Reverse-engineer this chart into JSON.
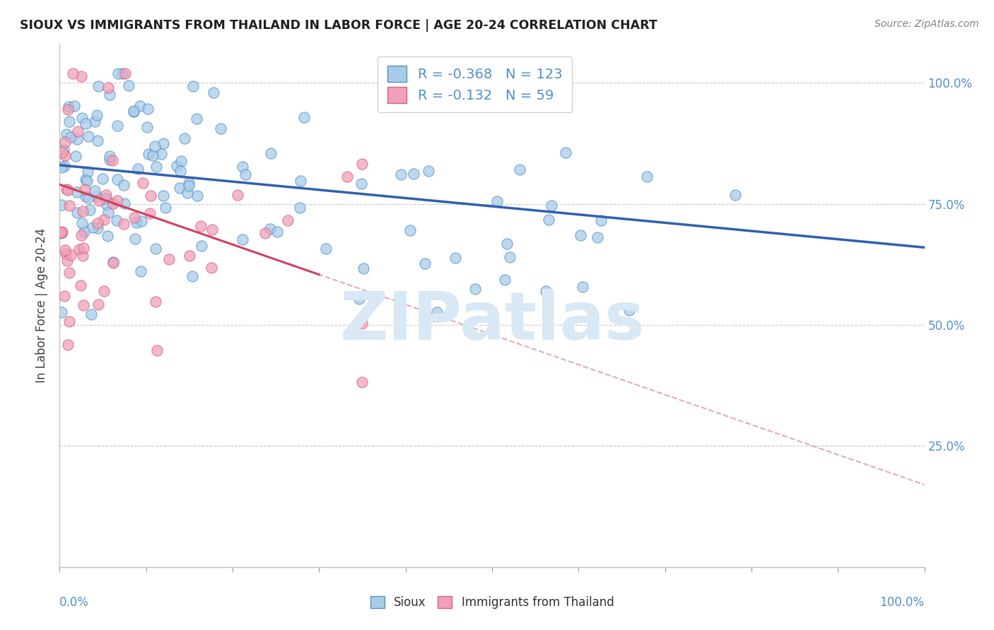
{
  "title": "SIOUX VS IMMIGRANTS FROM THAILAND IN LABOR FORCE | AGE 20-24 CORRELATION CHART",
  "source": "Source: ZipAtlas.com",
  "ylabel": "In Labor Force | Age 20-24",
  "legend_r_blue": "-0.368",
  "legend_n_blue": "123",
  "legend_r_pink": "-0.132",
  "legend_n_pink": "59",
  "blue_fill": "#A8CCE8",
  "blue_edge": "#5090C8",
  "pink_fill": "#F0A0B8",
  "pink_edge": "#D86080",
  "blue_line_color": "#3060B0",
  "pink_line_color": "#D04060",
  "dashed_line_color": "#E0A0B8",
  "watermark_color": "#D8E8F4",
  "background_color": "#FFFFFF",
  "grid_color": "#C8C8D0",
  "tick_color": "#5090C8",
  "title_color": "#202020",
  "ylabel_color": "#404040",
  "source_color": "#808080",
  "legend_text_color": "#5090C8"
}
